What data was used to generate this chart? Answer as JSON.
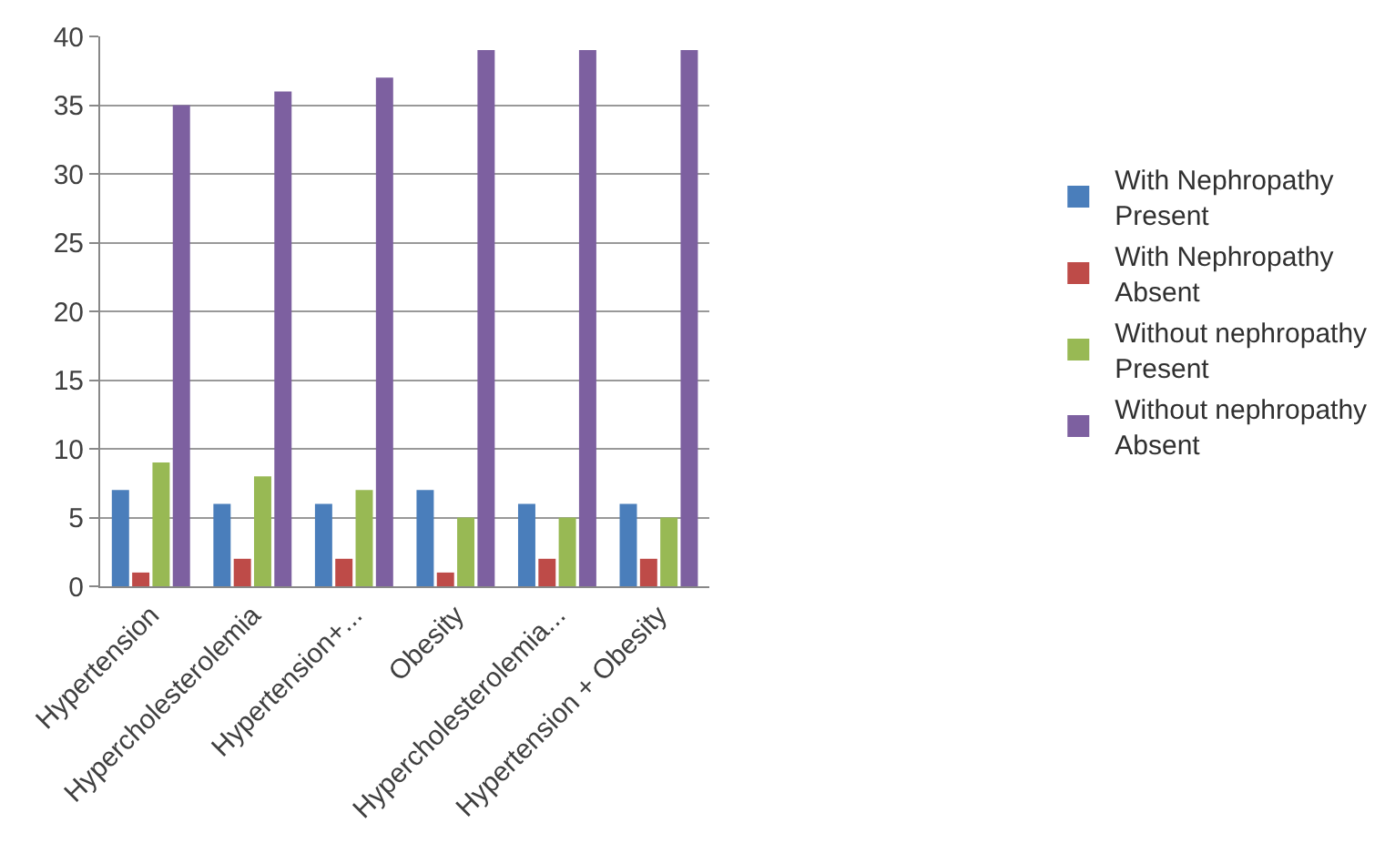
{
  "chart_data": {
    "type": "bar",
    "categories": [
      "Hypertension",
      "Hypercholesterolemia",
      "Hypertension+...",
      "Obesity",
      "Hypercholesterolemia...",
      "Hypertension + Obesity"
    ],
    "series": [
      {
        "name": "With Nephropathy Present",
        "color": "#4a7ebb",
        "values": [
          7,
          6,
          6,
          7,
          6,
          6
        ]
      },
      {
        "name": "With Nephropathy Absent",
        "color": "#be4b48",
        "values": [
          1,
          2,
          2,
          1,
          2,
          2
        ]
      },
      {
        "name": "Without nephropathy Present",
        "color": "#98b954",
        "values": [
          9,
          8,
          7,
          5,
          5,
          5
        ]
      },
      {
        "name": "Without nephropathy Absent",
        "color": "#7d60a0",
        "values": [
          35,
          36,
          37,
          39,
          39,
          39
        ]
      }
    ],
    "ylim": [
      0,
      40
    ],
    "yticks": [
      0,
      5,
      10,
      15,
      20,
      25,
      30,
      35,
      40
    ],
    "grid": "y",
    "legend": "right"
  }
}
